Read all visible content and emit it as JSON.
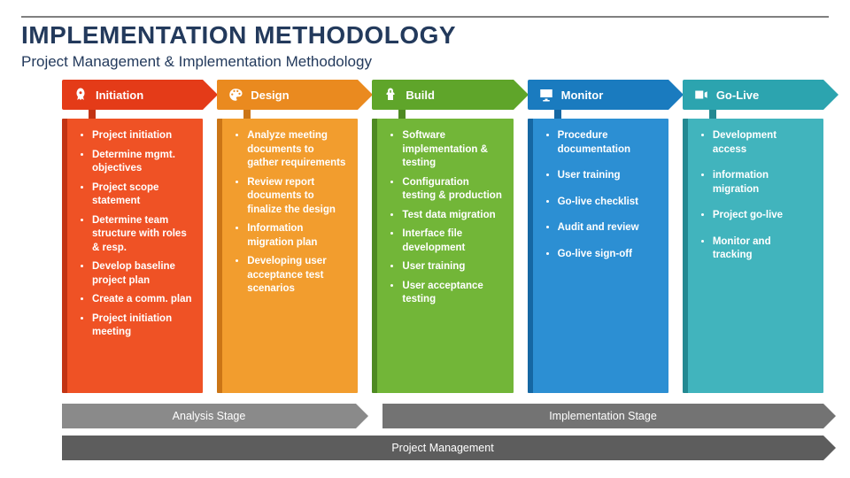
{
  "title_text": "IMPLEMENTATION METHODOLOGY",
  "title_color": "#233a5c",
  "subtitle_text": "Project Management & Implementation Methodology",
  "subtitle_color": "#233a5c",
  "rule_color": "#808080",
  "background_color": "#ffffff",
  "columns": [
    {
      "label": "Initiation",
      "tab_color": "#e43b18",
      "card_color": "#ef5225",
      "border_color": "#c23414",
      "icon": "rocket",
      "sparse": false,
      "items": [
        "Project initiation",
        "Determine mgmt. objectives",
        "Project scope statement",
        "Determine team structure with roles & resp.",
        "Develop baseline project plan",
        "Create a comm. plan",
        "Project initiation meeting"
      ]
    },
    {
      "label": "Design",
      "tab_color": "#ea8a1f",
      "card_color": "#f29d2e",
      "border_color": "#cb7516",
      "icon": "palette",
      "sparse": false,
      "items": [
        "Analyze meeting documents to gather requirements",
        "Review report documents to finalize the design",
        "Information migration plan",
        "Developing user acceptance test scenarios"
      ]
    },
    {
      "label": "Build",
      "tab_color": "#5fa52a",
      "card_color": "#72b638",
      "border_color": "#4e8a22",
      "icon": "wrench",
      "sparse": false,
      "items": [
        "Software implementation & testing",
        "Configuration testing & production",
        "Test data migration",
        "Interface file development",
        "User training",
        "User acceptance testing"
      ]
    },
    {
      "label": "Monitor",
      "tab_color": "#1a7bbf",
      "card_color": "#2c8fd3",
      "border_color": "#1567a3",
      "icon": "monitor",
      "sparse": true,
      "items": [
        "Procedure documentation",
        "User training",
        "Go-live checklist",
        "Audit and review",
        "Go-live sign-off"
      ]
    },
    {
      "label": "Go-Live",
      "tab_color": "#2ca4af",
      "card_color": "#41b4bd",
      "border_color": "#238992",
      "icon": "camera",
      "sparse": true,
      "items": [
        "Development access",
        "information migration",
        "Project go-live",
        "Monitor and tracking"
      ]
    }
  ],
  "stage_row1": {
    "color_a": "#8a8a8a",
    "color_b": "#737373",
    "label_a": "Analysis Stage",
    "label_b": "Implementation Stage",
    "split": 0.4
  },
  "stage_row2": {
    "color": "#5d5d5d",
    "label": "Project Management"
  },
  "fonts": {
    "title_size": 28,
    "subtitle_size": 17,
    "tab_size": 13,
    "item_size": 11.5,
    "stage_size": 12.5
  }
}
